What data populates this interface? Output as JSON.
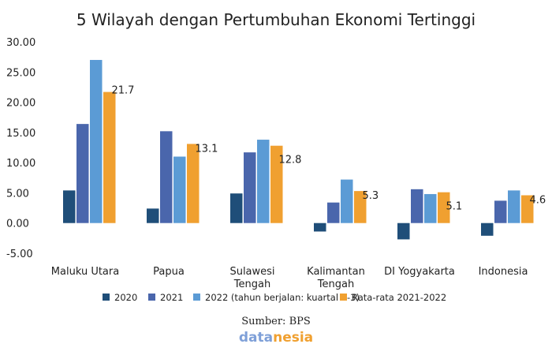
{
  "chart_data": {
    "type": "bar",
    "title": "5 Wilayah dengan Pertumbuhan Ekonomi Tertinggi",
    "xlabel": "",
    "ylabel": "",
    "ylim": [
      -5,
      30
    ],
    "yticks": [
      30,
      25,
      20,
      15,
      10,
      5,
      0,
      -5
    ],
    "ytick_labels": [
      "30.00",
      "25.00",
      "20.00",
      "15.00",
      "10.00",
      "5.00",
      "0.00",
      "-5.00"
    ],
    "categories": [
      [
        "Maluku Utara"
      ],
      [
        "Papua"
      ],
      [
        "Sulawesi",
        "Tengah"
      ],
      [
        "Kalimantan",
        "Tengah"
      ],
      [
        "DI Yogyakarta"
      ],
      [
        "Indonesia"
      ]
    ],
    "series": [
      {
        "name": "2020",
        "color": "#1f4e79",
        "values": [
          5.4,
          2.4,
          4.9,
          -1.4,
          -2.7,
          -2.1
        ]
      },
      {
        "name": "2021",
        "color": "#4a66ac",
        "values": [
          16.4,
          15.2,
          11.7,
          3.4,
          5.6,
          3.7
        ]
      },
      {
        "name": "2022 (tahun berjalan: kuartal 1-3)",
        "color": "#5b9bd5",
        "values": [
          27.0,
          11.0,
          13.8,
          7.2,
          4.8,
          5.4
        ]
      },
      {
        "name": "Rata-rata 2021-2022",
        "color": "#f0a030",
        "values": [
          21.7,
          13.1,
          12.8,
          5.3,
          5.1,
          4.6
        ]
      }
    ],
    "data_labels": [
      "21.7",
      "13.1",
      "12.8",
      "5.3",
      "5.1",
      "4.6"
    ],
    "legend_position": "bottom",
    "grid": false
  },
  "footer": {
    "source": "Sumber: BPS",
    "brand_part1": "data",
    "brand_part2": "nesia"
  }
}
